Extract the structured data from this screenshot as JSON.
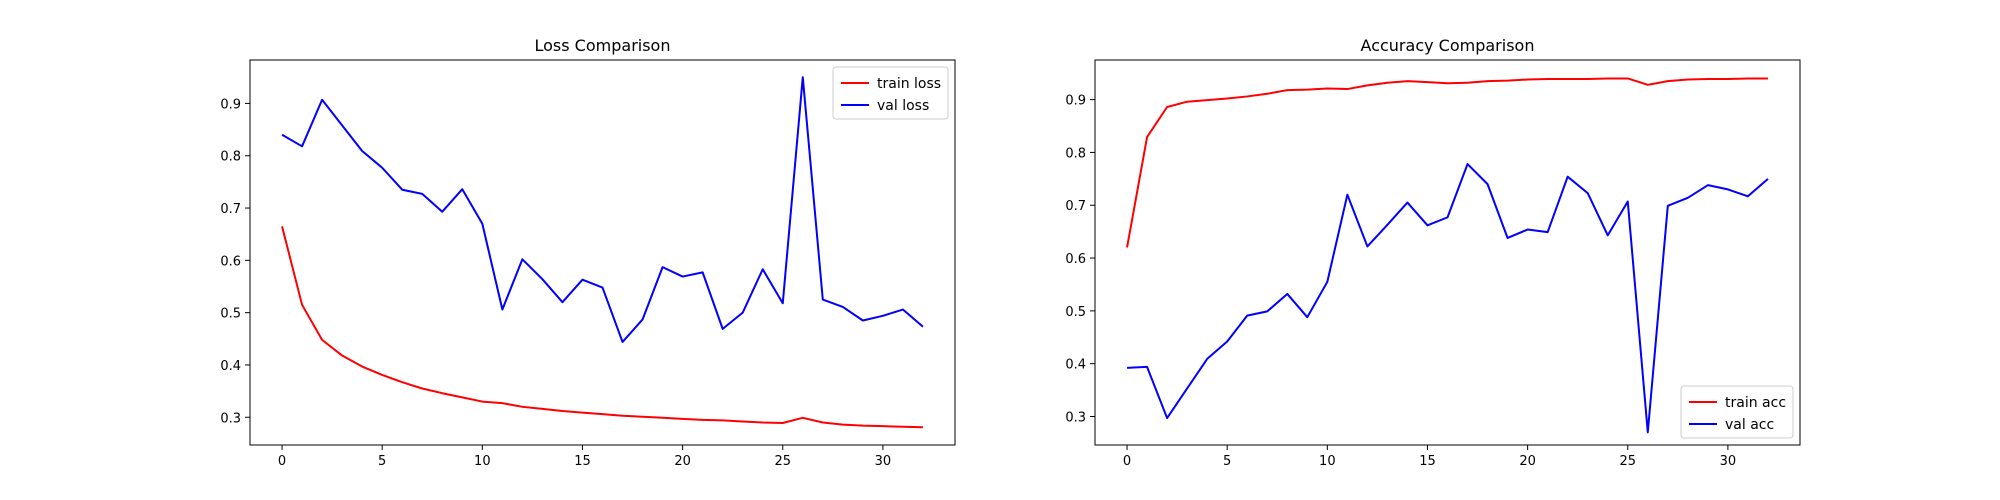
{
  "chart_data": [
    {
      "type": "line",
      "title": "Loss Comparison",
      "xlabel": "",
      "ylabel": "",
      "legend_position": "top-right",
      "grid": false,
      "xlim": [
        -1.6,
        33.6
      ],
      "ylim": [
        0.247,
        0.983
      ],
      "x_ticks": [
        0,
        5,
        10,
        15,
        20,
        25,
        30
      ],
      "y_ticks": [
        0.3,
        0.4,
        0.5,
        0.6,
        0.7,
        0.8,
        0.9
      ],
      "x": [
        0,
        1,
        2,
        3,
        4,
        5,
        6,
        7,
        8,
        9,
        10,
        11,
        12,
        13,
        14,
        15,
        16,
        17,
        18,
        19,
        20,
        21,
        22,
        23,
        24,
        25,
        26,
        27,
        28,
        29,
        30,
        31,
        32
      ],
      "series": [
        {
          "name": "train loss",
          "color": "#ff0000",
          "values": [
            0.665,
            0.515,
            0.448,
            0.418,
            0.397,
            0.381,
            0.367,
            0.355,
            0.346,
            0.338,
            0.33,
            0.327,
            0.32,
            0.316,
            0.312,
            0.309,
            0.306,
            0.303,
            0.301,
            0.299,
            0.297,
            0.295,
            0.294,
            0.292,
            0.29,
            0.289,
            0.299,
            0.29,
            0.286,
            0.284,
            0.283,
            0.282,
            0.281
          ]
        },
        {
          "name": "val loss",
          "color": "#0000ff",
          "values": [
            0.84,
            0.818,
            0.907,
            0.858,
            0.809,
            0.777,
            0.735,
            0.727,
            0.693,
            0.736,
            0.67,
            0.506,
            0.602,
            0.564,
            0.52,
            0.563,
            0.548,
            0.444,
            0.487,
            0.587,
            0.569,
            0.577,
            0.469,
            0.5,
            0.583,
            0.518,
            0.95,
            0.525,
            0.511,
            0.485,
            0.494,
            0.506,
            0.473
          ]
        }
      ]
    },
    {
      "type": "line",
      "title": "Accuracy Comparison",
      "xlabel": "",
      "ylabel": "",
      "legend_position": "lower-right",
      "grid": false,
      "xlim": [
        -1.6,
        33.6
      ],
      "ylim": [
        0.246,
        0.975
      ],
      "x_ticks": [
        0,
        5,
        10,
        15,
        20,
        25,
        30
      ],
      "y_ticks": [
        0.3,
        0.4,
        0.5,
        0.6,
        0.7,
        0.8,
        0.9
      ],
      "x": [
        0,
        1,
        2,
        3,
        4,
        5,
        6,
        7,
        8,
        9,
        10,
        11,
        12,
        13,
        14,
        15,
        16,
        17,
        18,
        19,
        20,
        21,
        22,
        23,
        24,
        25,
        26,
        27,
        28,
        29,
        30,
        31,
        32
      ],
      "series": [
        {
          "name": "train acc",
          "color": "#ff0000",
          "values": [
            0.62,
            0.829,
            0.886,
            0.896,
            0.899,
            0.902,
            0.906,
            0.911,
            0.918,
            0.919,
            0.921,
            0.92,
            0.927,
            0.932,
            0.935,
            0.933,
            0.931,
            0.932,
            0.935,
            0.936,
            0.938,
            0.939,
            0.939,
            0.939,
            0.94,
            0.94,
            0.928,
            0.935,
            0.938,
            0.939,
            0.939,
            0.94,
            0.94
          ]
        },
        {
          "name": "val acc",
          "color": "#0000ff",
          "values": [
            0.392,
            0.394,
            0.297,
            0.353,
            0.409,
            0.442,
            0.491,
            0.499,
            0.532,
            0.488,
            0.555,
            0.72,
            0.622,
            0.663,
            0.705,
            0.662,
            0.677,
            0.778,
            0.74,
            0.638,
            0.654,
            0.649,
            0.754,
            0.723,
            0.643,
            0.707,
            0.27,
            0.699,
            0.714,
            0.738,
            0.73,
            0.717,
            0.75
          ]
        }
      ]
    }
  ]
}
